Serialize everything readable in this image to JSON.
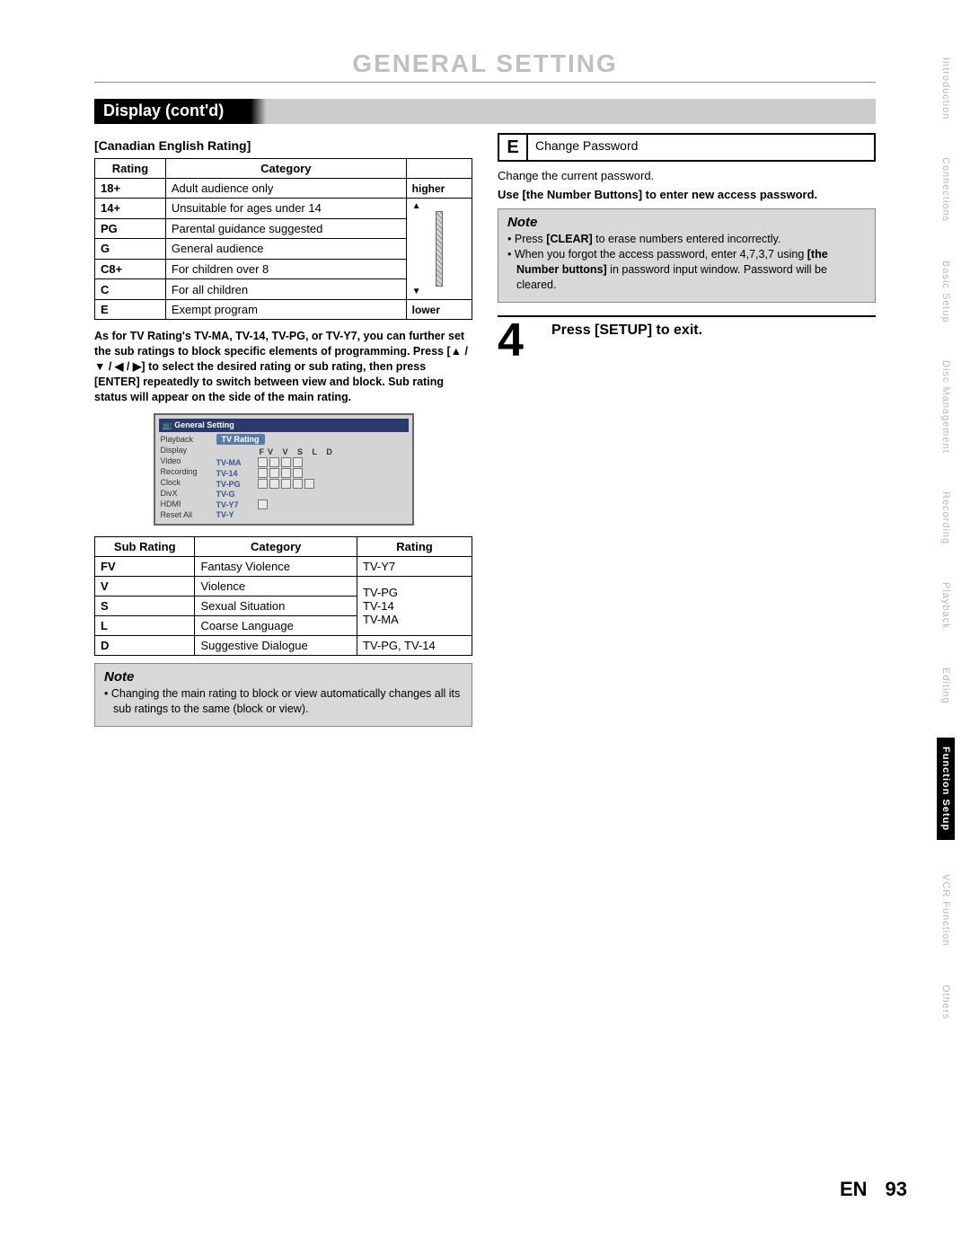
{
  "page": {
    "title": "GENERAL SETTING",
    "section_bar": "Display (cont'd)",
    "page_label": "EN",
    "page_number": "93"
  },
  "left": {
    "heading": "[Canadian English Rating]",
    "table1": {
      "headers": [
        "Rating",
        "Category",
        ""
      ],
      "higher": "higher",
      "lower": "lower",
      "rows": [
        [
          "18+",
          "Adult audience only"
        ],
        [
          "14+",
          "Unsuitable for ages under 14"
        ],
        [
          "PG",
          "Parental guidance suggested"
        ],
        [
          "G",
          "General audience"
        ],
        [
          "C8+",
          "For children over 8"
        ],
        [
          "C",
          "For all children"
        ],
        [
          "E",
          "Exempt program"
        ]
      ]
    },
    "paragraph": "As for TV Rating's TV-MA, TV-14, TV-PG, or TV-Y7, you can further set the sub ratings to block specific elements of programming. Press [▲ / ▼ / ◀ / ▶] to select the desired rating or sub rating, then press [ENTER] repeatedly to switch between view and block. Sub rating status will appear on the side of the main rating.",
    "osd": {
      "title": "General Setting",
      "menu": [
        "Playback",
        "Display",
        "Video",
        "Recording",
        "Clock",
        "DivX",
        "HDMI",
        "Reset All"
      ],
      "tab": "TV Rating",
      "col_header": "FV  V  S  L  D",
      "rows": [
        "TV-MA",
        "TV-14",
        "TV-PG",
        "TV-G",
        "TV-Y7",
        "TV-Y"
      ],
      "box_counts": [
        4,
        4,
        5,
        0,
        1,
        0
      ]
    },
    "table2": {
      "headers": [
        "Sub Rating",
        "Category",
        "Rating"
      ],
      "rows": [
        [
          "FV",
          "Fantasy Violence",
          "TV-Y7"
        ],
        [
          "V",
          "Violence",
          ""
        ],
        [
          "S",
          "Sexual Situation",
          ""
        ],
        [
          "L",
          "Coarse Language",
          ""
        ],
        [
          "D",
          "Suggestive Dialogue",
          "TV-PG, TV-14"
        ]
      ],
      "merged_rating": "TV-PG\nTV-14\nTV-MA"
    },
    "note": {
      "title": "Note",
      "items": [
        "Changing the main rating to block or view automatically changes all its sub ratings to the same (block or view)."
      ]
    }
  },
  "right": {
    "e_letter": "E",
    "e_text": "Change Password",
    "line1": "Change the current password.",
    "line2": "Use [the Number Buttons] to enter new access password.",
    "note": {
      "title": "Note",
      "items": [
        "Press [CLEAR] to erase numbers entered incorrectly.",
        "When you forgot the access password, enter 4,7,3,7 using [the Number buttons] in password input window. Password will be cleared."
      ]
    },
    "step4": "Press [SETUP] to exit.",
    "step4_num": "4"
  },
  "tabs": [
    {
      "label": "Introduction",
      "active": false
    },
    {
      "label": "Connections",
      "active": false
    },
    {
      "label": "Basic Setup",
      "active": false
    },
    {
      "label": "Disc Management",
      "active": false
    },
    {
      "label": "Recording",
      "active": false
    },
    {
      "label": "Playback",
      "active": false
    },
    {
      "label": "Editing",
      "active": false
    },
    {
      "label": "Function Setup",
      "active": true
    },
    {
      "label": "VCR Function",
      "active": false
    },
    {
      "label": "Others",
      "active": false
    }
  ],
  "colors": {
    "title_gray": "#c0c0c0",
    "note_bg": "#d8d8d8",
    "black": "#000000",
    "white": "#ffffff",
    "osd_header": "#2a3a6a",
    "osd_tab": "#5a7aaa"
  }
}
